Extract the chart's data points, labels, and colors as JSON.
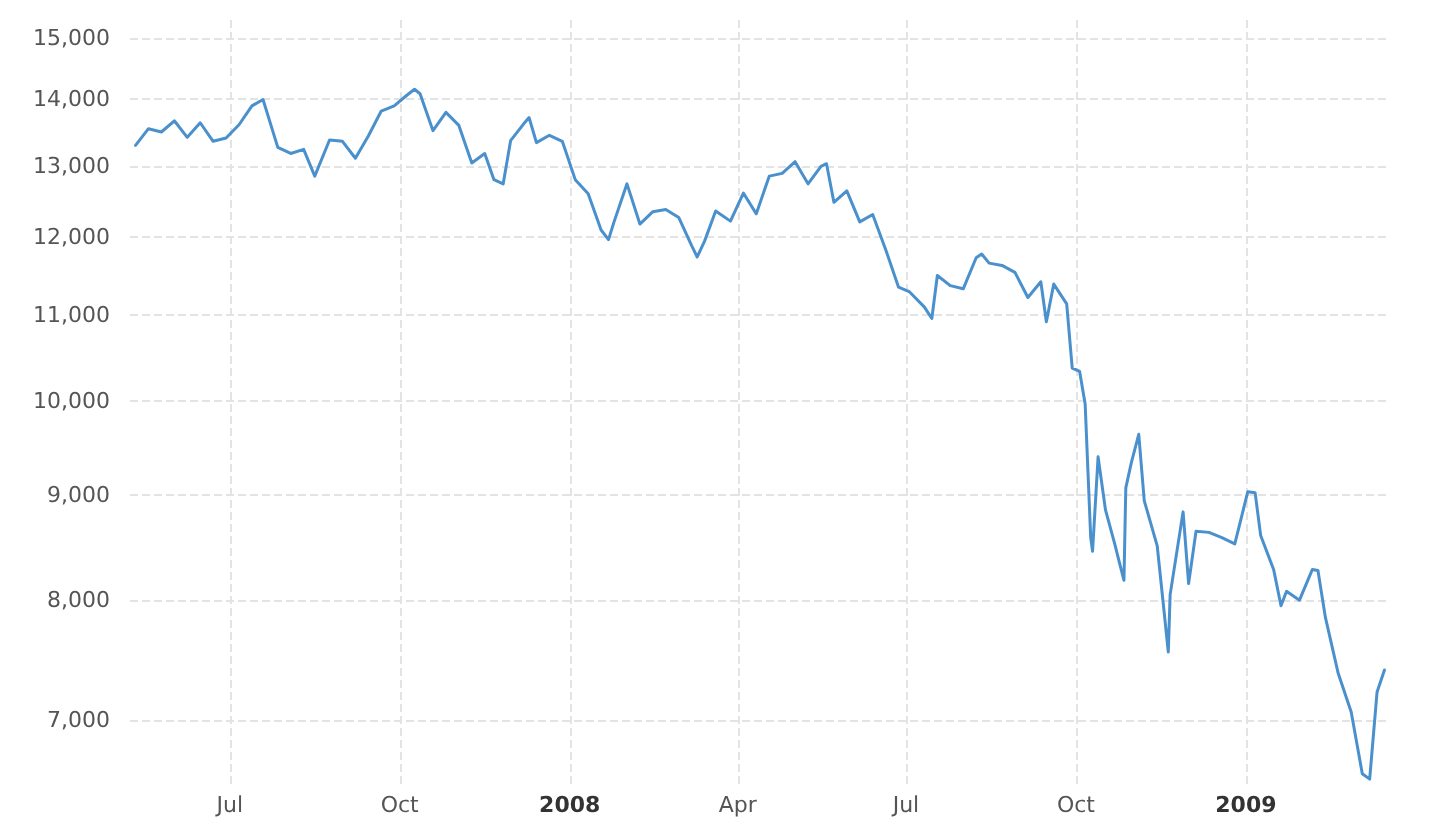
{
  "chart_data": {
    "type": "line",
    "log": "y",
    "grid": true,
    "marker": "none",
    "line_style": "solid",
    "xlim": [
      "2007-05-08",
      "2009-03-20"
    ],
    "xticks": [
      {
        "value": "2007-07-01",
        "label": "Jul"
      },
      {
        "value": "2007-10-01",
        "label": "Oct"
      },
      {
        "value": "2008-01-01",
        "label": "2008"
      },
      {
        "value": "2008-04-01",
        "label": "Apr"
      },
      {
        "value": "2008-07-01",
        "label": "Jul"
      },
      {
        "value": "2008-10-01",
        "label": "Oct"
      },
      {
        "value": "2009-01-01",
        "label": "2009"
      }
    ],
    "ylim": [
      6500,
      15300
    ],
    "yticks": [
      {
        "value": 7000,
        "label": "7,000"
      },
      {
        "value": 8000,
        "label": "8,000"
      },
      {
        "value": 9000,
        "label": "9,000"
      },
      {
        "value": 10000,
        "label": "10,000"
      },
      {
        "value": 11000,
        "label": "11,000"
      },
      {
        "value": 12000,
        "label": "12,000"
      },
      {
        "value": 13000,
        "label": "13,000"
      },
      {
        "value": 14000,
        "label": "14,000"
      },
      {
        "value": 15000,
        "label": "15,000"
      }
    ],
    "x": [
      "2007-05-11",
      "2007-05-18",
      "2007-05-25",
      "2007-06-01",
      "2007-06-08",
      "2007-06-15",
      "2007-06-22",
      "2007-06-29",
      "2007-07-06",
      "2007-07-13",
      "2007-07-19",
      "2007-07-27",
      "2007-08-03",
      "2007-08-10",
      "2007-08-16",
      "2007-08-24",
      "2007-08-31",
      "2007-09-07",
      "2007-09-14",
      "2007-09-21",
      "2007-09-28",
      "2007-10-05",
      "2007-10-09",
      "2007-10-12",
      "2007-10-19",
      "2007-10-26",
      "2007-11-02",
      "2007-11-09",
      "2007-11-16",
      "2007-11-21",
      "2007-11-26",
      "2007-11-30",
      "2007-12-07",
      "2007-12-10",
      "2007-12-14",
      "2007-12-21",
      "2007-12-28",
      "2008-01-04",
      "2008-01-11",
      "2008-01-18",
      "2008-01-22",
      "2008-01-25",
      "2008-02-01",
      "2008-02-08",
      "2008-02-15",
      "2008-02-22",
      "2008-02-29",
      "2008-03-07",
      "2008-03-10",
      "2008-03-14",
      "2008-03-20",
      "2008-03-28",
      "2008-04-04",
      "2008-04-11",
      "2008-04-18",
      "2008-04-25",
      "2008-05-02",
      "2008-05-09",
      "2008-05-16",
      "2008-05-19",
      "2008-05-23",
      "2008-05-30",
      "2008-06-06",
      "2008-06-13",
      "2008-06-20",
      "2008-06-27",
      "2008-07-03",
      "2008-07-11",
      "2008-07-15",
      "2008-07-18",
      "2008-07-25",
      "2008-08-01",
      "2008-08-08",
      "2008-08-11",
      "2008-08-15",
      "2008-08-22",
      "2008-08-29",
      "2008-09-05",
      "2008-09-12",
      "2008-09-15",
      "2008-09-19",
      "2008-09-26",
      "2008-09-29",
      "2008-10-03",
      "2008-10-06",
      "2008-10-09",
      "2008-10-10",
      "2008-10-13",
      "2008-10-17",
      "2008-10-22",
      "2008-10-24",
      "2008-10-27",
      "2008-10-28",
      "2008-10-31",
      "2008-11-04",
      "2008-11-07",
      "2008-11-14",
      "2008-11-20",
      "2008-11-21",
      "2008-11-28",
      "2008-12-01",
      "2008-12-05",
      "2008-12-12",
      "2008-12-19",
      "2008-12-26",
      "2009-01-02",
      "2009-01-06",
      "2009-01-09",
      "2009-01-16",
      "2009-01-20",
      "2009-01-23",
      "2009-01-30",
      "2009-02-06",
      "2009-02-09",
      "2009-02-13",
      "2009-02-20",
      "2009-02-27",
      "2009-03-05",
      "2009-03-09",
      "2009-03-13",
      "2009-03-17"
    ],
    "series": [
      {
        "color": "#4a90cd",
        "values": [
          13300,
          13550,
          13500,
          13670,
          13420,
          13640,
          13360,
          13410,
          13610,
          13900,
          14000,
          13270,
          13180,
          13240,
          12850,
          13380,
          13360,
          13110,
          13440,
          13820,
          13900,
          14070,
          14160,
          14090,
          13520,
          13800,
          13600,
          13040,
          13180,
          12800,
          12740,
          13370,
          13620,
          13720,
          13340,
          13450,
          13360,
          12800,
          12600,
          12100,
          11970,
          12210,
          12740,
          12180,
          12350,
          12380,
          12270,
          11890,
          11740,
          11950,
          12360,
          12220,
          12610,
          12320,
          12850,
          12890,
          13060,
          12740,
          12990,
          13030,
          12480,
          12640,
          12210,
          12310,
          11840,
          11350,
          11290,
          11100,
          10960,
          11500,
          11370,
          11330,
          11730,
          11780,
          11660,
          11630,
          11540,
          11220,
          11420,
          10920,
          11390,
          11140,
          10370,
          10330,
          9960,
          8580,
          8450,
          9390,
          8850,
          8520,
          8380,
          8180,
          9070,
          9330,
          9630,
          8940,
          8500,
          7550,
          8050,
          8830,
          8150,
          8640,
          8630,
          8580,
          8520,
          9030,
          9020,
          8600,
          8280,
          7950,
          8080,
          8000,
          8280,
          8270,
          7850,
          7370,
          7060,
          6590,
          6550,
          7220,
          7400
        ]
      }
    ]
  }
}
